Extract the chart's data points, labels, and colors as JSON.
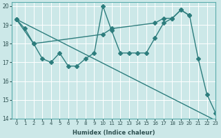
{
  "title": "",
  "xlabel": "Humidex (Indice chaleur)",
  "ylabel": "",
  "bg_color": "#cce8e8",
  "line_color": "#2d7d7d",
  "grid_color": "#ffffff",
  "xlim": [
    -0.5,
    23
  ],
  "ylim": [
    14,
    20.2
  ],
  "yticks": [
    14,
    15,
    16,
    17,
    18,
    19,
    20
  ],
  "xticks": [
    0,
    1,
    2,
    3,
    4,
    5,
    6,
    7,
    8,
    9,
    10,
    11,
    12,
    13,
    14,
    15,
    16,
    17,
    18,
    19,
    20,
    21,
    22,
    23
  ],
  "line1_x": [
    0,
    1,
    2,
    3,
    4,
    5,
    6,
    7,
    8,
    9,
    10,
    11,
    12,
    13,
    14,
    15,
    16,
    17,
    18,
    19,
    20,
    21,
    22,
    23
  ],
  "line1_y": [
    19.3,
    18.8,
    18.0,
    17.2,
    17.0,
    17.5,
    16.8,
    16.8,
    17.2,
    17.5,
    20.0,
    18.7,
    17.5,
    17.5,
    17.5,
    17.5,
    18.3,
    19.1,
    19.35,
    19.8,
    19.5,
    17.2,
    15.3,
    14.3
  ],
  "line2_x": [
    0,
    2,
    10,
    11,
    16,
    17,
    18,
    19,
    20
  ],
  "line2_y": [
    19.3,
    18.0,
    18.5,
    18.8,
    19.1,
    19.35,
    19.35,
    19.8,
    19.5
  ],
  "line3_x": [
    0,
    23
  ],
  "line3_y": [
    19.3,
    13.9
  ],
  "markersize": 3,
  "linewidth": 1.0
}
